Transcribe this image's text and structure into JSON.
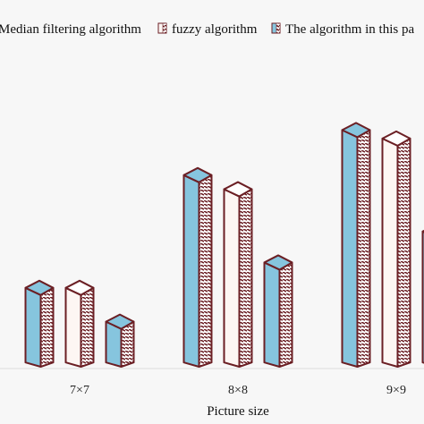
{
  "chart_data": {
    "type": "bar",
    "title": "",
    "xlabel": "Picture size",
    "ylabel": "",
    "categories": [
      "7×7",
      "8×8",
      "9×9"
    ],
    "series": [
      {
        "name": "Median filtering algorithm",
        "values": [
          28,
          68,
          84
        ]
      },
      {
        "name": "fuzzy algorithm",
        "values": [
          28,
          63,
          81
        ]
      },
      {
        "name": "The algorithm in this pa",
        "values": [
          16,
          37,
          48
        ]
      }
    ],
    "ylim": [
      0,
      100
    ],
    "grid": false,
    "legend_position": "top",
    "colors": {
      "series": [
        "#86c5de",
        "#fdf6f3",
        "#86c5de"
      ],
      "outline": "#6b1f24",
      "hatch": "#6b1f24",
      "background": "#f7f7f7"
    }
  }
}
